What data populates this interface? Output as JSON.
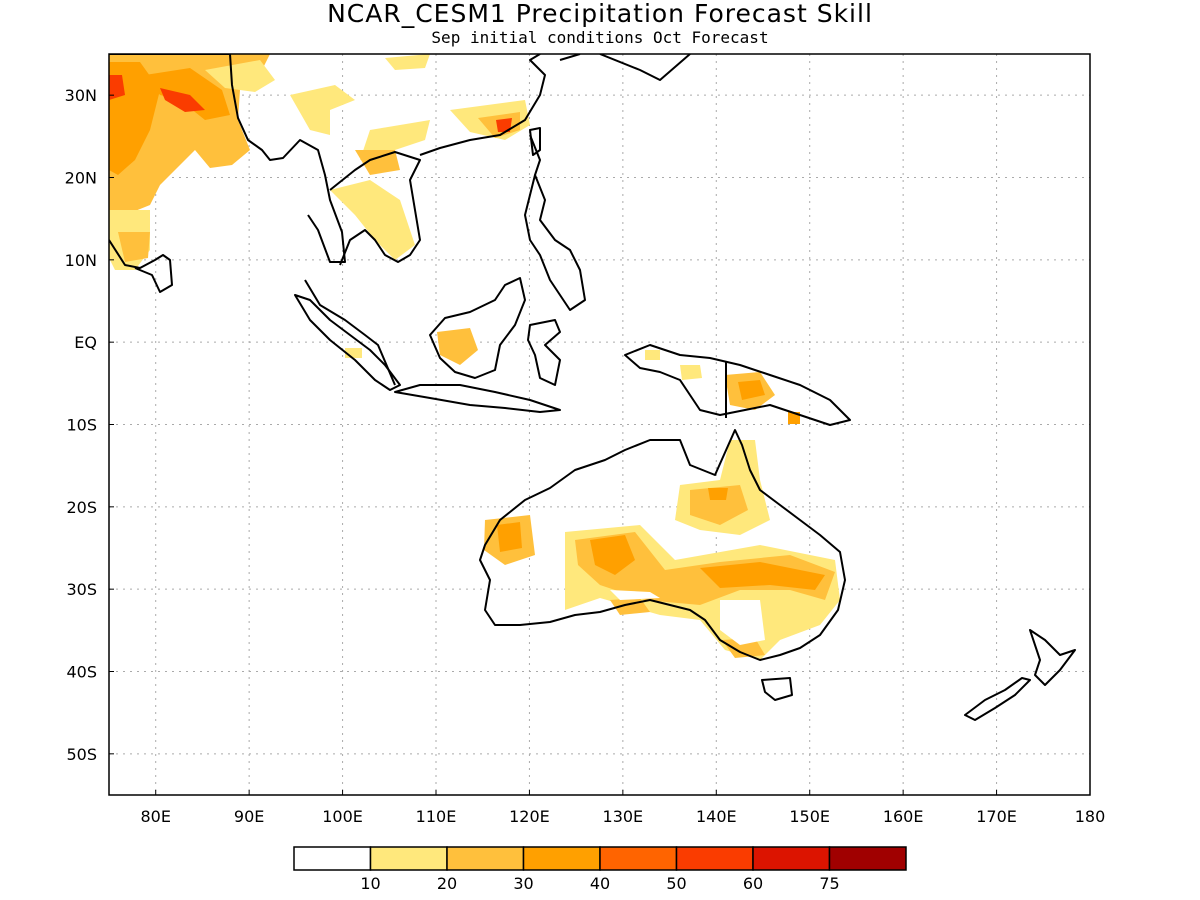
{
  "title": "NCAR_CESM1 Precipitation Forecast Skill",
  "subtitle": "Sep initial conditions  Oct Forecast",
  "map": {
    "lon_range": [
      75,
      180
    ],
    "lat_range": [
      -55,
      35
    ],
    "lat_ticks": [
      {
        "value": 30,
        "label": "30N"
      },
      {
        "value": 20,
        "label": "20N"
      },
      {
        "value": 10,
        "label": "10N"
      },
      {
        "value": 0,
        "label": "EQ"
      },
      {
        "value": -10,
        "label": "10S"
      },
      {
        "value": -20,
        "label": "20S"
      },
      {
        "value": -30,
        "label": "30S"
      },
      {
        "value": -40,
        "label": "40S"
      },
      {
        "value": -50,
        "label": "50S"
      }
    ],
    "lon_ticks": [
      {
        "value": 80,
        "label": "80E"
      },
      {
        "value": 90,
        "label": "90E"
      },
      {
        "value": 100,
        "label": "100E"
      },
      {
        "value": 110,
        "label": "110E"
      },
      {
        "value": 120,
        "label": "120E"
      },
      {
        "value": 130,
        "label": "130E"
      },
      {
        "value": 140,
        "label": "140E"
      },
      {
        "value": 150,
        "label": "150E"
      },
      {
        "value": 160,
        "label": "160E"
      },
      {
        "value": 170,
        "label": "170E"
      },
      {
        "value": 180,
        "label": "180"
      }
    ],
    "grid": true
  },
  "colorbar": {
    "colors": [
      "#ffffff",
      "#ffe87c",
      "#ffc03c",
      "#ffa000",
      "#ff6400",
      "#fa3c00",
      "#dc1400",
      "#a00000"
    ],
    "labels": [
      "10",
      "20",
      "30",
      "40",
      "50",
      "60",
      "75"
    ]
  }
}
